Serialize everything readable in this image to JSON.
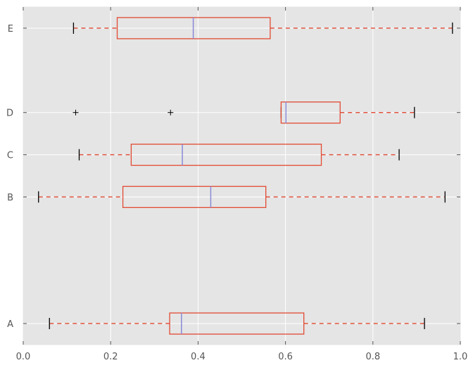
{
  "chart_data": {
    "type": "boxplot",
    "orientation": "horizontal",
    "xlim": [
      0.0,
      1.0
    ],
    "ylim": [
      0.5,
      8.5
    ],
    "xticks": [
      0.0,
      0.2,
      0.4,
      0.6,
      0.8,
      1.0
    ],
    "xtick_labels": [
      "0.0",
      "0.2",
      "0.4",
      "0.6",
      "0.8",
      "1.0"
    ],
    "grid": true,
    "colors": {
      "plot_background": "#e5e5e5",
      "grid": "#ffffff",
      "box": "#e24a33",
      "median": "#8a8ad8",
      "caps": "#000000",
      "tick_text": "#555555"
    },
    "boxes": [
      {
        "label": "A",
        "position": 1,
        "whisker_low": 0.06,
        "q1": 0.335,
        "median": 0.362,
        "q3": 0.642,
        "whisker_high": 0.918,
        "fliers": []
      },
      {
        "label": "B",
        "position": 4,
        "whisker_low": 0.035,
        "q1": 0.228,
        "median": 0.429,
        "q3": 0.555,
        "whisker_high": 0.965,
        "fliers": []
      },
      {
        "label": "C",
        "position": 5,
        "whisker_low": 0.128,
        "q1": 0.247,
        "median": 0.364,
        "q3": 0.682,
        "whisker_high": 0.86,
        "fliers": []
      },
      {
        "label": "D",
        "position": 6,
        "whisker_low": 0.59,
        "q1": 0.59,
        "median": 0.601,
        "q3": 0.725,
        "whisker_high": 0.895,
        "fliers": [
          0.12,
          0.337
        ]
      },
      {
        "label": "E",
        "position": 8,
        "whisker_low": 0.115,
        "q1": 0.215,
        "median": 0.389,
        "q3": 0.565,
        "whisker_high": 0.982,
        "fliers": []
      }
    ]
  }
}
